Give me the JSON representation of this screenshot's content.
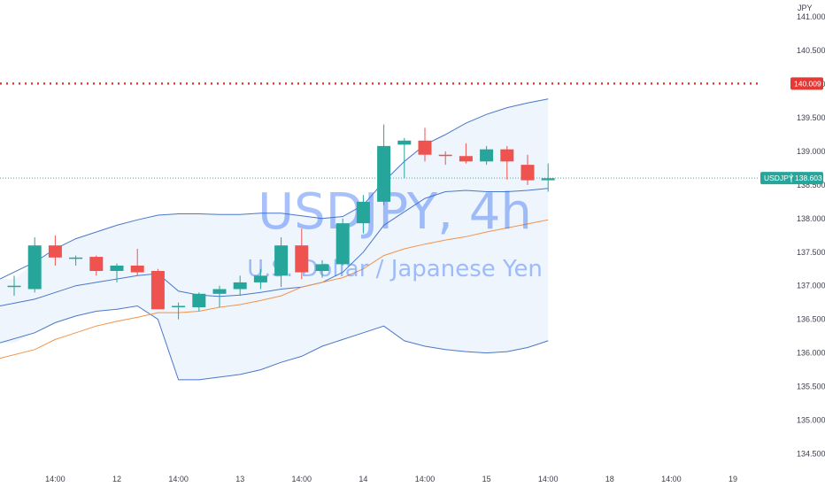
{
  "chart_data": {
    "type": "candlestick",
    "title": "USDJPY, 4h",
    "subtitle": "U.S. Dollar / Japanese Yen",
    "currency_label": "JPY",
    "symbol_tag": "USDJPY",
    "last_price_label": "138.603",
    "last_price": 138.603,
    "horizontal_level": 140.009,
    "horizontal_level_label": "140.009",
    "ylim": [
      134.4,
      141.2
    ],
    "y_ticks": [
      "134.500",
      "135.000",
      "135.500",
      "136.000",
      "136.500",
      "137.000",
      "137.500",
      "138.000",
      "138.500",
      "139.000",
      "139.500",
      "140.000",
      "140.500",
      "141.000"
    ],
    "x_ticks": [
      {
        "label": "14:00",
        "slot": 2
      },
      {
        "label": "12",
        "slot": 5
      },
      {
        "label": "14:00",
        "slot": 8
      },
      {
        "label": "13",
        "slot": 11
      },
      {
        "label": "14:00",
        "slot": 14
      },
      {
        "label": "14",
        "slot": 17
      },
      {
        "label": "14:00",
        "slot": 20
      },
      {
        "label": "15",
        "slot": 23
      },
      {
        "label": "14:00",
        "slot": 26
      },
      {
        "label": "18",
        "slot": 29
      },
      {
        "label": "14:00",
        "slot": 32
      },
      {
        "label": "19",
        "slot": 35
      }
    ],
    "candles": [
      {
        "o": 137.0,
        "h": 137.15,
        "l": 136.85,
        "c": 137.0
      },
      {
        "o": 136.95,
        "h": 137.72,
        "l": 136.9,
        "c": 137.6
      },
      {
        "o": 137.6,
        "h": 137.75,
        "l": 137.3,
        "c": 137.42
      },
      {
        "o": 137.4,
        "h": 137.45,
        "l": 137.3,
        "c": 137.42
      },
      {
        "o": 137.43,
        "h": 137.45,
        "l": 137.15,
        "c": 137.22
      },
      {
        "o": 137.22,
        "h": 137.33,
        "l": 137.05,
        "c": 137.3
      },
      {
        "o": 137.3,
        "h": 137.55,
        "l": 137.15,
        "c": 137.2
      },
      {
        "o": 137.22,
        "h": 137.25,
        "l": 136.65,
        "c": 136.65
      },
      {
        "o": 136.68,
        "h": 136.75,
        "l": 136.5,
        "c": 136.7
      },
      {
        "o": 136.68,
        "h": 136.9,
        "l": 136.62,
        "c": 136.88
      },
      {
        "o": 136.88,
        "h": 137.0,
        "l": 136.68,
        "c": 136.95
      },
      {
        "o": 136.95,
        "h": 137.15,
        "l": 136.85,
        "c": 137.05
      },
      {
        "o": 137.05,
        "h": 137.25,
        "l": 136.95,
        "c": 137.15
      },
      {
        "o": 137.15,
        "h": 137.72,
        "l": 136.98,
        "c": 137.6
      },
      {
        "o": 137.6,
        "h": 137.85,
        "l": 137.1,
        "c": 137.2
      },
      {
        "o": 137.22,
        "h": 137.38,
        "l": 137.12,
        "c": 137.32
      },
      {
        "o": 137.32,
        "h": 138.0,
        "l": 137.3,
        "c": 137.93
      },
      {
        "o": 137.93,
        "h": 138.35,
        "l": 137.78,
        "c": 138.25
      },
      {
        "o": 138.25,
        "h": 139.4,
        "l": 138.2,
        "c": 139.08
      },
      {
        "o": 139.1,
        "h": 139.2,
        "l": 138.6,
        "c": 139.16
      },
      {
        "o": 139.16,
        "h": 139.35,
        "l": 138.85,
        "c": 138.95
      },
      {
        "o": 138.95,
        "h": 139.0,
        "l": 138.8,
        "c": 138.93
      },
      {
        "o": 138.93,
        "h": 139.12,
        "l": 138.82,
        "c": 138.85
      },
      {
        "o": 138.85,
        "h": 139.08,
        "l": 138.8,
        "c": 139.03
      },
      {
        "o": 139.03,
        "h": 139.08,
        "l": 138.58,
        "c": 138.85
      },
      {
        "o": 138.8,
        "h": 138.95,
        "l": 138.5,
        "c": 138.57
      },
      {
        "o": 138.57,
        "h": 138.82,
        "l": 138.4,
        "c": 138.6
      }
    ],
    "bollinger_upper": [
      137.1,
      137.35,
      137.55,
      137.7,
      137.8,
      137.9,
      137.98,
      138.05,
      138.07,
      138.07,
      138.06,
      138.06,
      138.08,
      138.08,
      138.04,
      138.0,
      138.03,
      138.2,
      138.55,
      138.85,
      139.1,
      139.25,
      139.42,
      139.55,
      139.65,
      139.72,
      139.78
    ],
    "bollinger_basis": [
      136.7,
      136.8,
      136.9,
      137.0,
      137.05,
      137.1,
      137.15,
      137.18,
      136.92,
      136.86,
      136.84,
      136.86,
      136.9,
      136.95,
      136.98,
      137.05,
      137.2,
      137.5,
      137.9,
      138.1,
      138.3,
      138.4,
      138.42,
      138.4,
      138.4,
      138.42,
      138.45
    ],
    "bollinger_lower": [
      136.15,
      136.3,
      136.45,
      136.55,
      136.62,
      136.65,
      136.7,
      136.5,
      135.6,
      135.6,
      135.64,
      135.68,
      135.75,
      135.86,
      135.95,
      136.1,
      136.2,
      136.3,
      136.4,
      136.18,
      136.1,
      136.05,
      136.02,
      136.0,
      136.02,
      136.08,
      136.18
    ],
    "moving_average": [
      135.92,
      136.05,
      136.2,
      136.3,
      136.4,
      136.47,
      136.53,
      136.6,
      136.6,
      136.62,
      136.68,
      136.72,
      136.78,
      136.85,
      136.98,
      137.05,
      137.12,
      137.25,
      137.45,
      137.55,
      137.62,
      137.68,
      137.73,
      137.8,
      137.86,
      137.92,
      137.98
    ],
    "colors": {
      "up": "#26a69a",
      "down": "#ef5350",
      "band_line": "#4a77c9",
      "band_fill": "#e8f2fc",
      "ma_line": "#f0944c",
      "level_line": "#e53935",
      "last_price_line": "#26a69a"
    }
  }
}
